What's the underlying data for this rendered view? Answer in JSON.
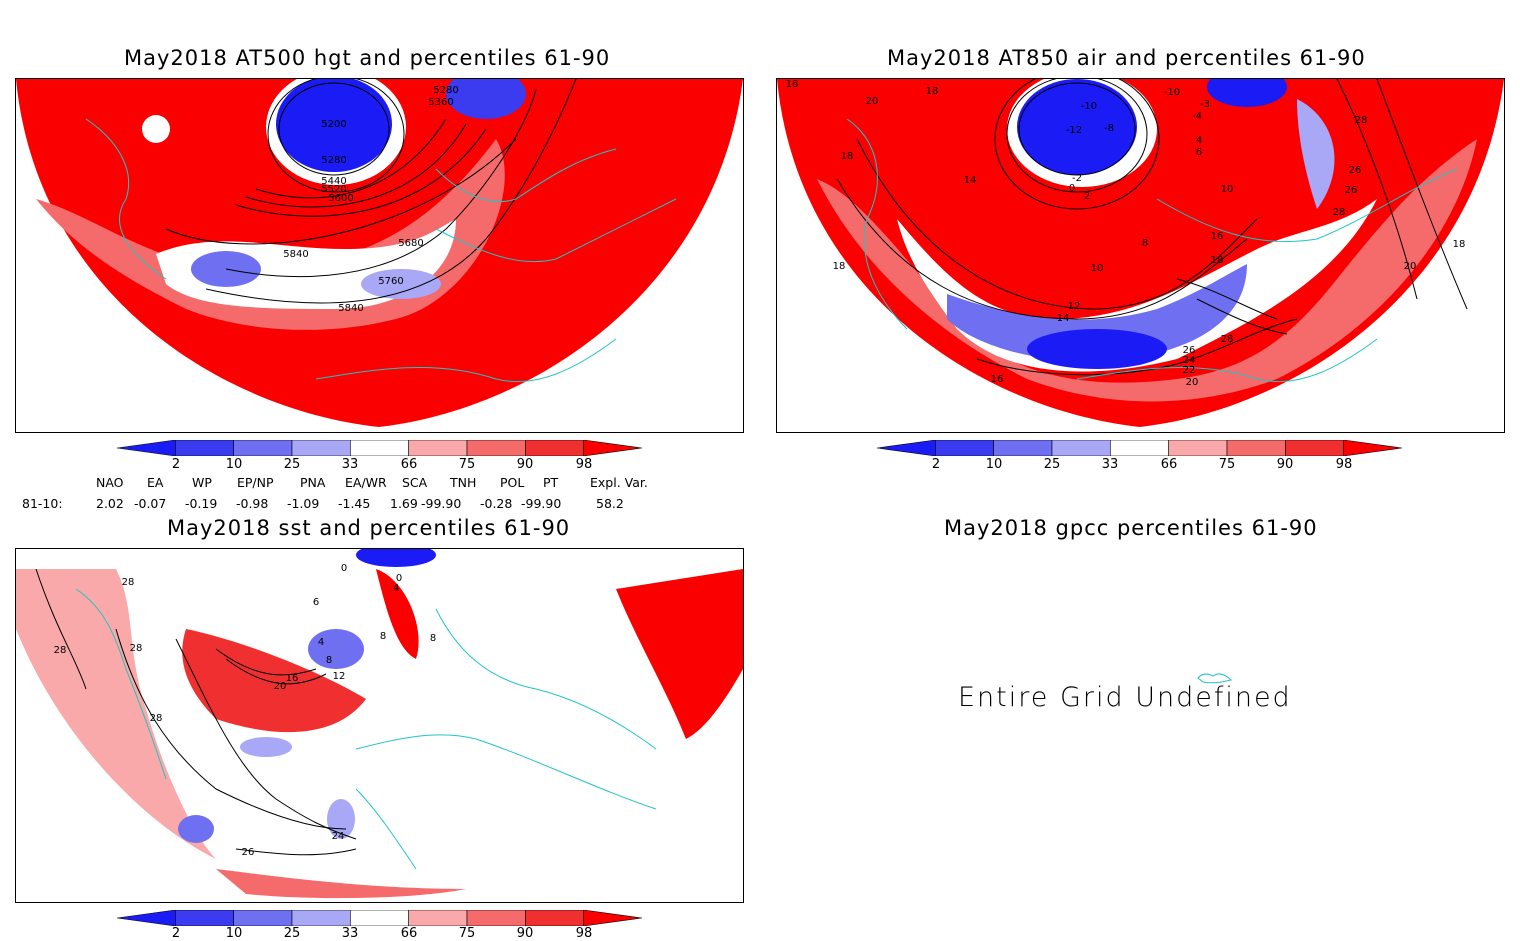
{
  "panels": {
    "hgt": {
      "title": "May2018 AT500 hgt and percentiles 61-90",
      "contour_labels": [
        "5200",
        "5280",
        "5280",
        "5360",
        "5440",
        "5520",
        "5600",
        "5680",
        "5760",
        "5840",
        "5840"
      ]
    },
    "air": {
      "title": "May2018 AT850 air and percentiles 61-90",
      "contour_labels": [
        "16",
        "18",
        "18",
        "20",
        "18",
        "-10",
        "-12",
        "-8",
        "-2",
        "0",
        "2",
        "14",
        "-10",
        "-3",
        "-4",
        "4",
        "6",
        "10",
        "8",
        "10",
        "12",
        "14",
        "16",
        "18",
        "28",
        "26",
        "26",
        "28",
        "20",
        "18",
        "28",
        "26",
        "24",
        "22",
        "20",
        "16"
      ]
    },
    "sst": {
      "title": "May2018 sst and percentiles 61-90",
      "contour_labels": [
        "28",
        "28",
        "28",
        "28",
        "0",
        "0",
        "4",
        "6",
        "4",
        "8",
        "8",
        "8",
        "12",
        "16",
        "20",
        "24",
        "26"
      ]
    },
    "gpcc": {
      "title": "May2018 gpcc percentiles 61-90",
      "message": "Entire Grid Undefined"
    }
  },
  "colorbar": {
    "ticks": [
      "2",
      "10",
      "25",
      "33",
      "66",
      "75",
      "90",
      "98"
    ],
    "colors": [
      "#1b1bf5",
      "#3b3bf0",
      "#6f6ff2",
      "#a8a8f7",
      "#ffffff",
      "#f9a9a9",
      "#f56a6a",
      "#f03030",
      "#fa0000"
    ]
  },
  "teleconnections": {
    "row_label": "81-10:",
    "headers": [
      "NAO",
      "EA",
      "WP",
      "EP/NP",
      "PNA",
      "EA/WR",
      "SCA",
      "TNH",
      "POL",
      "PT",
      "Expl. Var."
    ],
    "values": [
      "2.02",
      "-0.07",
      "-0.19",
      "-0.98",
      "-1.09",
      "-1.45",
      "1.69",
      "-99.90",
      "-0.28",
      "-99.90",
      "58.2"
    ]
  }
}
